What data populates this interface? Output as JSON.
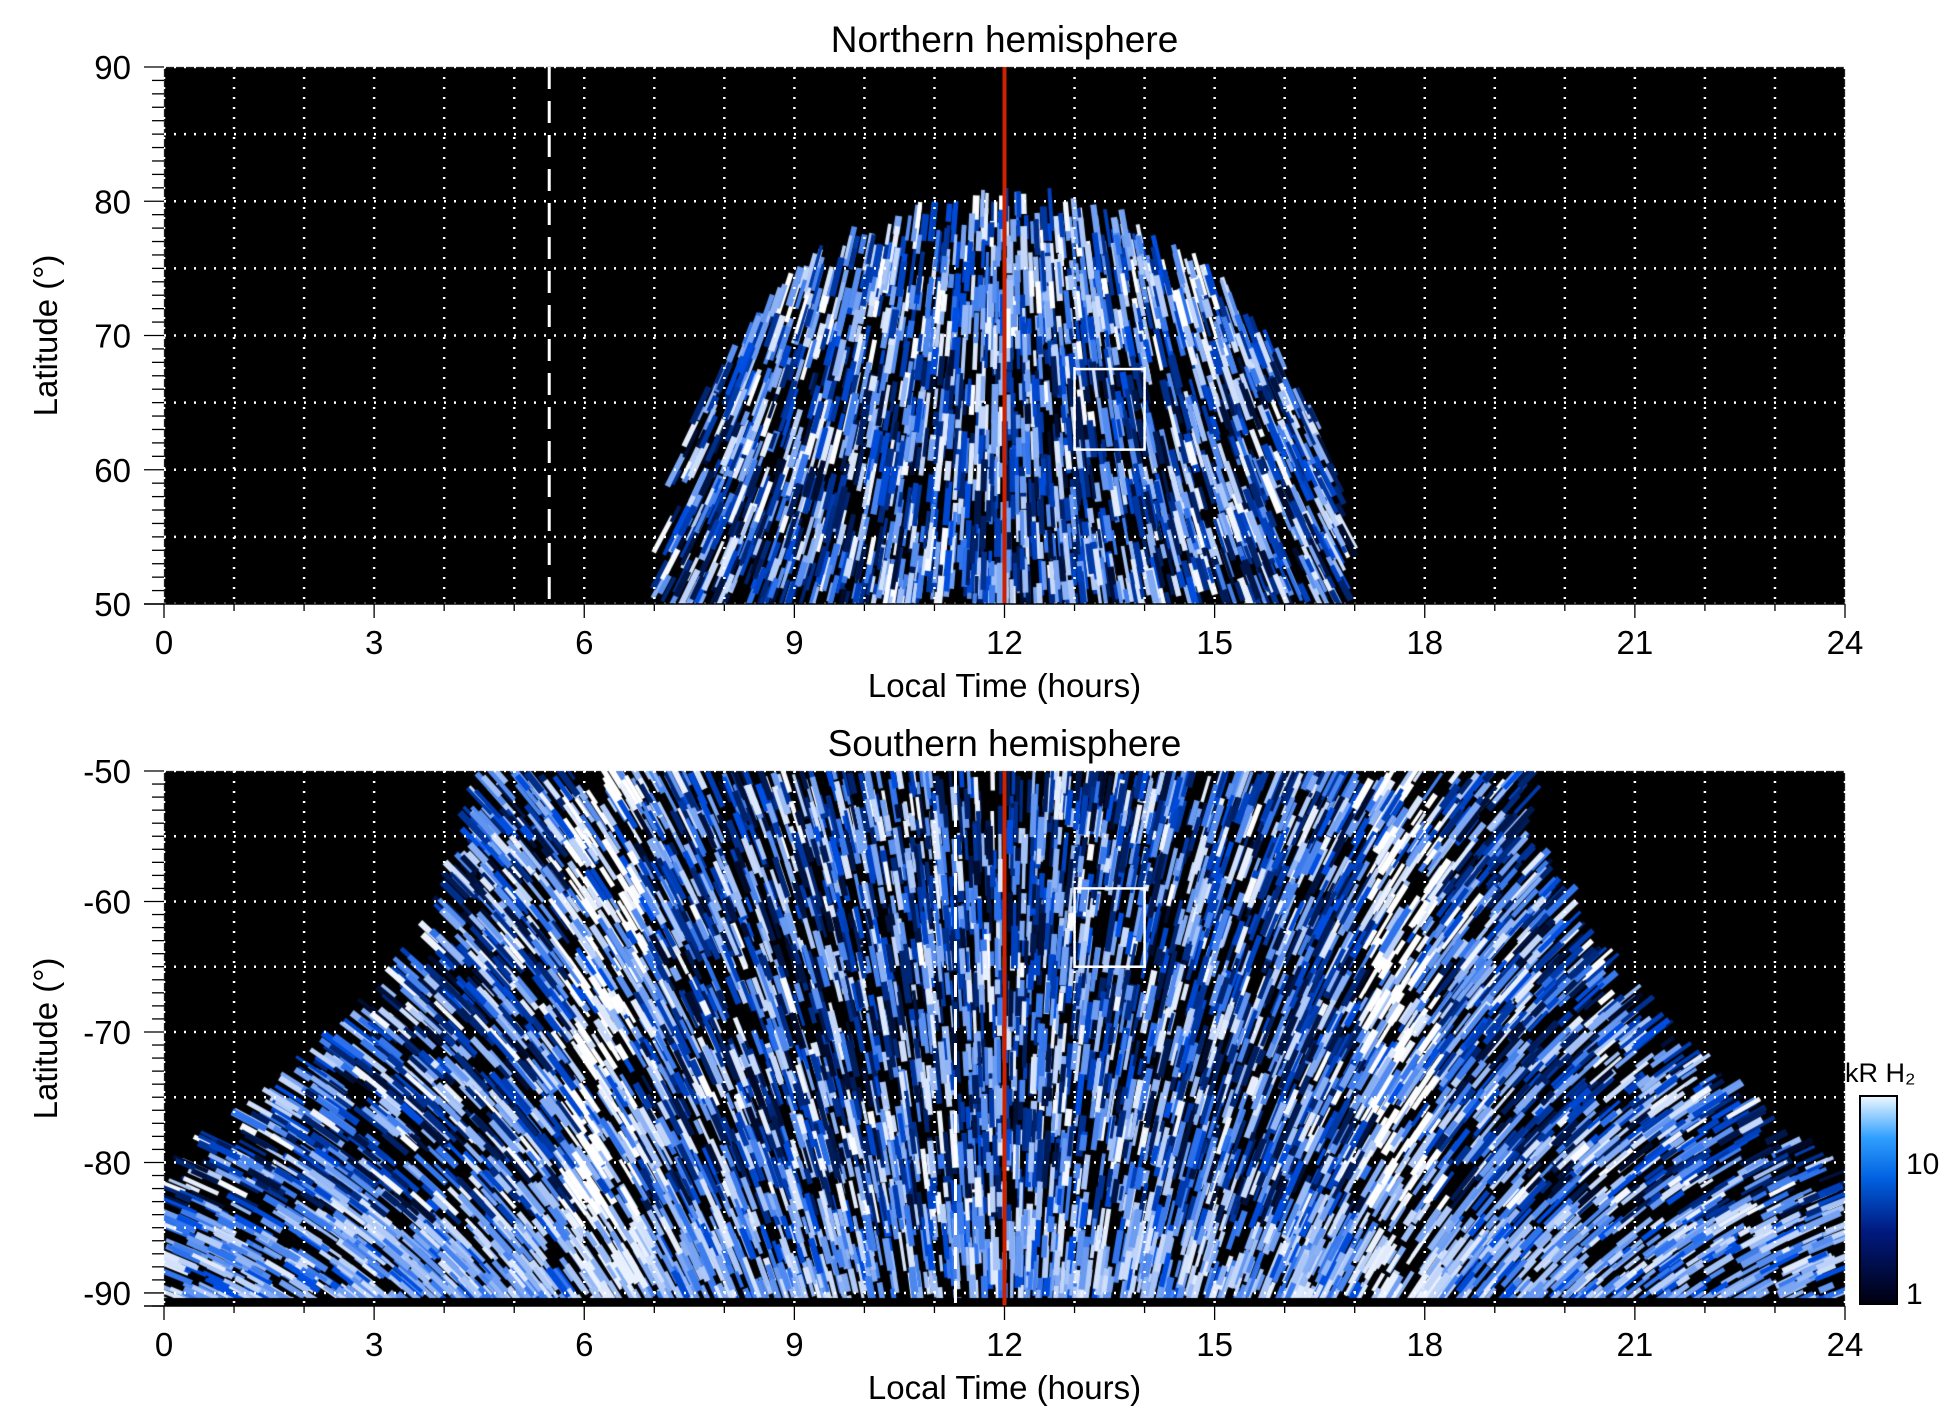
{
  "chart_data": [
    {
      "type": "heatmap",
      "title": "Northern hemisphere",
      "xlabel": "Local Time (hours)",
      "ylabel": "Latitude (°)",
      "xlim": [
        0,
        24
      ],
      "ylim": [
        50,
        90
      ],
      "xticks": [
        "0",
        "3",
        "6",
        "9",
        "12",
        "15",
        "18",
        "21",
        "24"
      ],
      "yticks": [
        "50",
        "60",
        "70",
        "80",
        "90"
      ],
      "grid": true,
      "dashed_line_lt": 5.5,
      "noon_line_lt": 12,
      "box": {
        "lt": [
          13,
          14
        ],
        "lat": [
          61.5,
          67.5
        ]
      },
      "coverage": "emission between ~7 and ~17 h LT, up to ~80° near noon"
    },
    {
      "type": "heatmap",
      "title": "Southern hemisphere",
      "xlabel": "Local Time (hours)",
      "ylabel": "Latitude (°)",
      "xlim": [
        0,
        24
      ],
      "ylim": [
        -91,
        -50
      ],
      "xticks": [
        "0",
        "3",
        "6",
        "9",
        "12",
        "15",
        "18",
        "21",
        "24"
      ],
      "yticks": [
        "-50",
        "-60",
        "-70",
        "-80",
        "-90"
      ],
      "grid": true,
      "dashed_line_lt": 11.3,
      "noon_line_lt": 12,
      "box": {
        "lt": [
          13,
          14
        ],
        "lat": [
          -65,
          -59
        ]
      },
      "coverage": "emission ~4.5–19.5 h LT at -50°, full LT range poleward of -81°"
    }
  ],
  "colorbar": {
    "label": "kR H₂",
    "ticks": [
      "1",
      "10"
    ],
    "range": [
      1,
      30
    ],
    "scale": "log"
  },
  "colors": {
    "noon_line": "#cc2200",
    "low": "#000010",
    "mid": "#0050e0",
    "high": "#ffffff"
  }
}
